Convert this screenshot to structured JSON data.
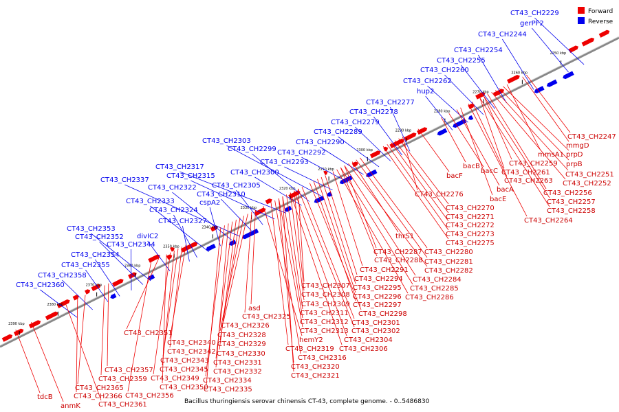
{
  "caption": "Bacillus thuringiensis serovar chinensis CT-43, complete genome. - 0..5486830",
  "legend": [
    {
      "label": "Forward",
      "color": "#ee0000"
    },
    {
      "label": "Reverse",
      "color": "#0000ee"
    }
  ],
  "colors": {
    "forward": "#ee0000",
    "reverse": "#0000ee",
    "backbone": "#888888"
  },
  "axis": {
    "unit": "kbp",
    "range_kbp": [
      2235,
      2395
    ],
    "ticks": [
      {
        "kbp": 2250,
        "label": "2250 kbp"
      },
      {
        "kbp": 2260,
        "label": "2260 kbp"
      },
      {
        "kbp": 2270,
        "label": "2270 kbp"
      },
      {
        "kbp": 2280,
        "label": "2280 kbp"
      },
      {
        "kbp": 2290,
        "label": "2290 kbp"
      },
      {
        "kbp": 2300,
        "label": "2300 kbp"
      },
      {
        "kbp": 2310,
        "label": "2310 kbp"
      },
      {
        "kbp": 2320,
        "label": "2320 kbp"
      },
      {
        "kbp": 2330,
        "label": "2330 kbp"
      },
      {
        "kbp": 2340,
        "label": "2340 kbp"
      },
      {
        "kbp": 2350,
        "label": "2350 kbp"
      },
      {
        "kbp": 2360,
        "label": "2360 kbp"
      },
      {
        "kbp": 2370,
        "label": "2370 kbp"
      },
      {
        "kbp": 2380,
        "label": "2380 kbp"
      },
      {
        "kbp": 2390,
        "label": "2390 kbp"
      }
    ]
  },
  "reverse_genes": [
    {
      "label": "CT43_CH2229",
      "kbp": 2245
    },
    {
      "label": "gerPF2",
      "kbp": 2249
    },
    {
      "label": "CT43_CH2244",
      "kbp": 2258
    },
    {
      "label": "CT43_CH2254",
      "kbp": 2265
    },
    {
      "label": "CT43_CH2255",
      "kbp": 2268
    },
    {
      "label": "CT43_CH2260",
      "kbp": 2271
    },
    {
      "label": "CT43_CH2262",
      "kbp": 2275
    },
    {
      "label": "hup2",
      "kbp": 2279
    },
    {
      "label": "CT43_CH2277",
      "kbp": 2290
    },
    {
      "label": "CT43_CH2278",
      "kbp": 2292
    },
    {
      "label": "CT43_CH2279",
      "kbp": 2295
    },
    {
      "label": "CT43_CH2289",
      "kbp": 2298
    },
    {
      "label": "CT43_CH2290",
      "kbp": 2302
    },
    {
      "label": "CT43_CH2292",
      "kbp": 2306
    },
    {
      "label": "CT43_CH2293",
      "kbp": 2310
    },
    {
      "label": "CT43_CH2303",
      "kbp": 2313
    },
    {
      "label": "CT43_CH2299",
      "kbp": 2316
    },
    {
      "label": "CT43_CH2300",
      "kbp": 2318
    },
    {
      "label": "CT43_CH2317",
      "kbp": 2322
    },
    {
      "label": "CT43_CH2315",
      "kbp": 2325
    },
    {
      "label": "CT43_CH2305",
      "kbp": 2328
    },
    {
      "label": "CT43_CH2310",
      "kbp": 2331
    },
    {
      "label": "CT43_CH2337",
      "kbp": 2334
    },
    {
      "label": "CT43_CH2322",
      "kbp": 2336
    },
    {
      "label": "cspA2",
      "kbp": 2339
    },
    {
      "label": "CT43_CH2333",
      "kbp": 2342
    },
    {
      "label": "CT43_CH2324",
      "kbp": 2345
    },
    {
      "label": "CT43_CH2327",
      "kbp": 2347
    },
    {
      "label": "divIC2",
      "kbp": 2352
    },
    {
      "label": "CT43_CH2353",
      "kbp": 2357
    },
    {
      "label": "CT43_CH2352",
      "kbp": 2359
    },
    {
      "label": "CT43_CH2344",
      "kbp": 2362
    },
    {
      "label": "CT43_CH2354",
      "kbp": 2365
    },
    {
      "label": "CT43_CH2355",
      "kbp": 2368
    },
    {
      "label": "CT43_CH2358",
      "kbp": 2372
    },
    {
      "label": "CT43_CH2360",
      "kbp": 2376
    }
  ],
  "forward_genes": [
    {
      "label": "CT43_CH2247",
      "kbp": 2258
    },
    {
      "label": "mmgD",
      "kbp": 2259
    },
    {
      "label": "mmsA1",
      "kbp": 2263
    },
    {
      "label": "prpD",
      "kbp": 2264
    },
    {
      "label": "prpB",
      "kbp": 2265
    },
    {
      "label": "CT43_CH2251",
      "kbp": 2266
    },
    {
      "label": "CT43_CH2252",
      "kbp": 2267
    },
    {
      "label": "CT43_CH2259",
      "kbp": 2269
    },
    {
      "label": "CT43_CH2261",
      "kbp": 2270
    },
    {
      "label": "CT43_CH2263",
      "kbp": 2272
    },
    {
      "label": "CT43_CH2256",
      "kbp": 2268
    },
    {
      "label": "CT43_CH2257",
      "kbp": 2269
    },
    {
      "label": "CT43_CH2258",
      "kbp": 2270
    },
    {
      "label": "bacB",
      "kbp": 2280
    },
    {
      "label": "bacC",
      "kbp": 2278
    },
    {
      "label": "bacA",
      "kbp": 2276
    },
    {
      "label": "bacE",
      "kbp": 2275
    },
    {
      "label": "CT43_CH2264",
      "kbp": 2273
    },
    {
      "label": "bacF",
      "kbp": 2286
    },
    {
      "label": "CT43_CH2276",
      "kbp": 2290
    },
    {
      "label": "CT43_CH2270",
      "kbp": 2291
    },
    {
      "label": "CT43_CH2271",
      "kbp": 2292
    },
    {
      "label": "CT43_CH2272",
      "kbp": 2293
    },
    {
      "label": "CT43_CH2273",
      "kbp": 2294
    },
    {
      "label": "CT43_CH2275",
      "kbp": 2295
    },
    {
      "label": "thrS1",
      "kbp": 2303
    },
    {
      "label": "CT43_CH2280",
      "kbp": 2301
    },
    {
      "label": "CT43_CH2281",
      "kbp": 2302
    },
    {
      "label": "CT43_CH2282",
      "kbp": 2304
    },
    {
      "label": "CT43_CH2287",
      "kbp": 2305
    },
    {
      "label": "CT43_CH2288",
      "kbp": 2306
    },
    {
      "label": "CT43_CH2291",
      "kbp": 2308
    },
    {
      "label": "CT43_CH2284",
      "kbp": 2305
    },
    {
      "label": "CT43_CH2285",
      "kbp": 2306
    },
    {
      "label": "CT43_CH2286",
      "kbp": 2307
    },
    {
      "label": "CT43_CH2294",
      "kbp": 2310
    },
    {
      "label": "CT43_CH2295",
      "kbp": 2311
    },
    {
      "label": "CT43_CH2296",
      "kbp": 2312
    },
    {
      "label": "CT43_CH2297",
      "kbp": 2313
    },
    {
      "label": "CT43_CH2298",
      "kbp": 2314
    },
    {
      "label": "CT43_CH2307",
      "kbp": 2317
    },
    {
      "label": "CT43_CH2308",
      "kbp": 2318
    },
    {
      "label": "CT43_CH2309",
      "kbp": 2319
    },
    {
      "label": "CT43_CH2311",
      "kbp": 2320
    },
    {
      "label": "CT43_CH2312",
      "kbp": 2321
    },
    {
      "label": "CT43_CH2313",
      "kbp": 2322
    },
    {
      "label": "CT43_CH2301",
      "kbp": 2316
    },
    {
      "label": "CT43_CH2302",
      "kbp": 2317
    },
    {
      "label": "CT43_CH2304",
      "kbp": 2318
    },
    {
      "label": "CT43_CH2306",
      "kbp": 2319
    },
    {
      "label": "asd",
      "kbp": 2328
    },
    {
      "label": "CT43_CH2325",
      "kbp": 2329
    },
    {
      "label": "CT43_CH2326",
      "kbp": 2330
    },
    {
      "label": "CT43_CH2328",
      "kbp": 2331
    },
    {
      "label": "CT43_CH2329",
      "kbp": 2332
    },
    {
      "label": "CT43_CH2330",
      "kbp": 2333
    },
    {
      "label": "CT43_CH2331",
      "kbp": 2334
    },
    {
      "label": "CT43_CH2332",
      "kbp": 2335
    },
    {
      "label": "CT43_CH2334",
      "kbp": 2336
    },
    {
      "label": "CT43_CH2335",
      "kbp": 2337
    },
    {
      "label": "hemY2",
      "kbp": 2326
    },
    {
      "label": "CT43_CH2319",
      "kbp": 2324
    },
    {
      "label": "CT43_CH2316",
      "kbp": 2323
    },
    {
      "label": "CT43_CH2320",
      "kbp": 2322
    },
    {
      "label": "CT43_CH2321",
      "kbp": 2321
    },
    {
      "label": "CT43_CH2351",
      "kbp": 2353
    },
    {
      "label": "CT43_CH2340",
      "kbp": 2346
    },
    {
      "label": "CT43_CH2342",
      "kbp": 2347
    },
    {
      "label": "CT43_CH2343",
      "kbp": 2348
    },
    {
      "label": "CT43_CH2345",
      "kbp": 2349
    },
    {
      "label": "CT43_CH2349",
      "kbp": 2350
    },
    {
      "label": "CT43_CH2350",
      "kbp": 2351
    },
    {
      "label": "CT43_CH2356",
      "kbp": 2355
    },
    {
      "label": "CT43_CH2357",
      "kbp": 2366
    },
    {
      "label": "CT43_CH2359",
      "kbp": 2367
    },
    {
      "label": "CT43_CH2365",
      "kbp": 2372
    },
    {
      "label": "CT43_CH2366",
      "kbp": 2374
    },
    {
      "label": "CT43_CH2361",
      "kbp": 2377
    },
    {
      "label": "tdcB",
      "kbp": 2390
    },
    {
      "label": "anmK",
      "kbp": 2386
    }
  ]
}
